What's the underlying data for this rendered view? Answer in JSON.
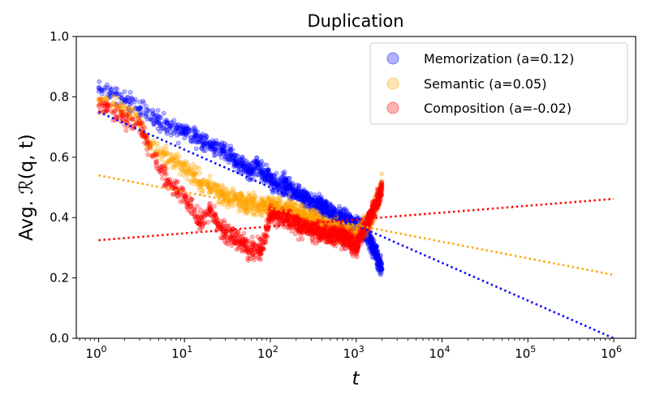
{
  "chart_data": {
    "type": "scatter",
    "title": "Duplication",
    "xlabel": "t",
    "ylabel": "Avg. ℛ(q, t)",
    "x_scale": "log",
    "xlim": [
      0.55,
      1800000
    ],
    "ylim": [
      0.0,
      1.0
    ],
    "x_ticks": [
      {
        "value": 1,
        "exp": "0"
      },
      {
        "value": 10,
        "exp": "1"
      },
      {
        "value": 100,
        "exp": "2"
      },
      {
        "value": 1000,
        "exp": "3"
      },
      {
        "value": 10000,
        "exp": "4"
      },
      {
        "value": 100000,
        "exp": "5"
      },
      {
        "value": 1000000,
        "exp": "6"
      }
    ],
    "y_ticks": [
      {
        "value": 0.0,
        "label": "0.0"
      },
      {
        "value": 0.2,
        "label": "0.2"
      },
      {
        "value": 0.4,
        "label": "0.4"
      },
      {
        "value": 0.6,
        "label": "0.6"
      },
      {
        "value": 0.8,
        "label": "0.8"
      },
      {
        "value": 1.0,
        "label": "1.0"
      }
    ],
    "grid": false,
    "legend_position": "upper-right",
    "series": [
      {
        "name": "Memorization (a=0.12)",
        "color": "#0000ff",
        "trend": {
          "x": [
            1,
            1000000
          ],
          "y": [
            0.75,
            0.0
          ]
        },
        "points": [
          [
            1,
            0.83
          ],
          [
            2,
            0.79
          ],
          [
            3,
            0.76
          ],
          [
            5,
            0.72
          ],
          [
            7,
            0.7
          ],
          [
            10,
            0.69
          ],
          [
            15,
            0.66
          ],
          [
            20,
            0.64
          ],
          [
            30,
            0.62
          ],
          [
            40,
            0.58
          ],
          [
            50,
            0.57
          ],
          [
            60,
            0.55
          ],
          [
            70,
            0.58
          ],
          [
            80,
            0.55
          ],
          [
            100,
            0.53
          ],
          [
            120,
            0.51
          ],
          [
            150,
            0.51
          ],
          [
            200,
            0.48
          ],
          [
            250,
            0.47
          ],
          [
            300,
            0.45
          ],
          [
            400,
            0.44
          ],
          [
            500,
            0.42
          ],
          [
            600,
            0.4
          ],
          [
            800,
            0.39
          ],
          [
            1000,
            0.37
          ],
          [
            1300,
            0.35
          ],
          [
            1600,
            0.3
          ],
          [
            2000,
            0.23
          ]
        ]
      },
      {
        "name": "Semantic (a=0.05)",
        "color": "#ffa500",
        "trend": {
          "x": [
            1,
            1000000
          ],
          "y": [
            0.54,
            0.21
          ]
        },
        "points": [
          [
            1,
            0.79
          ],
          [
            2,
            0.76
          ],
          [
            3,
            0.72
          ],
          [
            4,
            0.64
          ],
          [
            5,
            0.62
          ],
          [
            7,
            0.59
          ],
          [
            10,
            0.57
          ],
          [
            12,
            0.55
          ],
          [
            15,
            0.52
          ],
          [
            20,
            0.5
          ],
          [
            30,
            0.47
          ],
          [
            40,
            0.46
          ],
          [
            50,
            0.45
          ],
          [
            70,
            0.44
          ],
          [
            100,
            0.44
          ],
          [
            150,
            0.43
          ],
          [
            200,
            0.42
          ],
          [
            300,
            0.4
          ],
          [
            400,
            0.38
          ],
          [
            500,
            0.36
          ],
          [
            700,
            0.35
          ],
          [
            1000,
            0.34
          ],
          [
            1500,
            0.4
          ],
          [
            2000,
            0.51
          ]
        ]
      },
      {
        "name": "Composition (a=-0.02)",
        "color": "#ff0000",
        "trend": {
          "x": [
            1,
            1000000
          ],
          "y": [
            0.325,
            0.462
          ]
        },
        "points": [
          [
            1,
            0.77
          ],
          [
            3,
            0.71
          ],
          [
            5,
            0.56
          ],
          [
            7,
            0.51
          ],
          [
            10,
            0.47
          ],
          [
            12,
            0.44
          ],
          [
            15,
            0.38
          ],
          [
            20,
            0.43
          ],
          [
            25,
            0.37
          ],
          [
            30,
            0.35
          ],
          [
            40,
            0.33
          ],
          [
            50,
            0.31
          ],
          [
            60,
            0.29
          ],
          [
            80,
            0.3
          ],
          [
            100,
            0.41
          ],
          [
            150,
            0.4
          ],
          [
            200,
            0.38
          ],
          [
            300,
            0.36
          ],
          [
            400,
            0.35
          ],
          [
            600,
            0.34
          ],
          [
            800,
            0.33
          ],
          [
            1000,
            0.3
          ],
          [
            1300,
            0.38
          ],
          [
            1700,
            0.44
          ],
          [
            2000,
            0.5
          ]
        ]
      }
    ]
  }
}
